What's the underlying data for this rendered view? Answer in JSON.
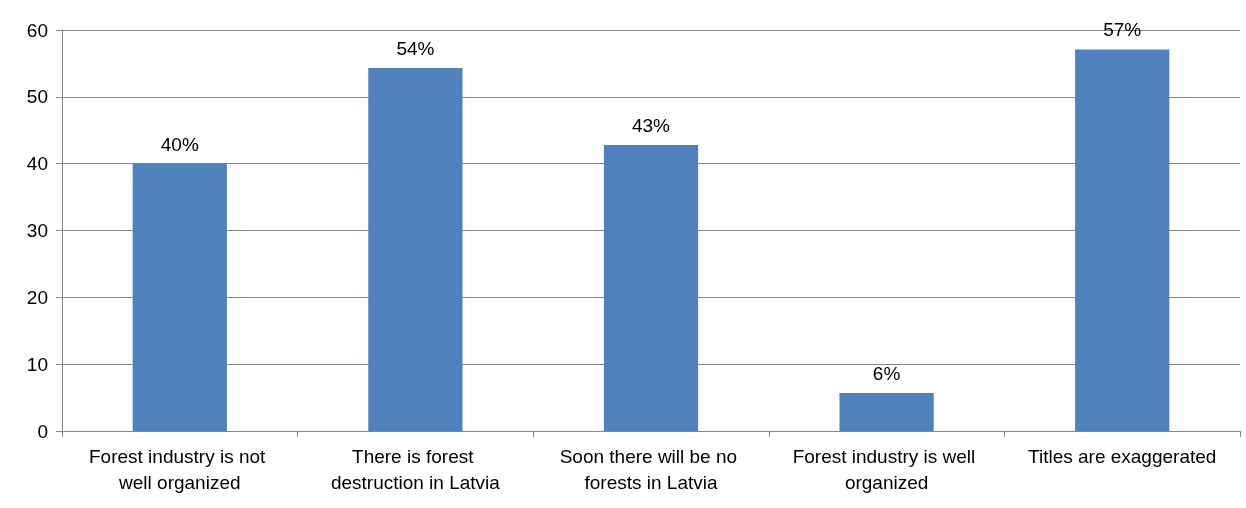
{
  "chart_data": {
    "type": "bar",
    "categories": [
      "Forest industry is not well organized",
      "There is forest destruction in Latvia",
      "Soon there will be no forests in Latvia",
      "Forest industry is well organized",
      "Titles are exaggerated"
    ],
    "values": [
      40,
      54.3,
      42.8,
      5.7,
      57.1
    ],
    "value_labels": [
      "40%",
      "54%",
      "43%",
      "6%",
      "57%"
    ],
    "color": "#4f81bd",
    "ylim": [
      0,
      60
    ],
    "yticks": [
      0,
      10,
      20,
      30,
      40,
      50,
      60
    ],
    "grid": "y"
  }
}
